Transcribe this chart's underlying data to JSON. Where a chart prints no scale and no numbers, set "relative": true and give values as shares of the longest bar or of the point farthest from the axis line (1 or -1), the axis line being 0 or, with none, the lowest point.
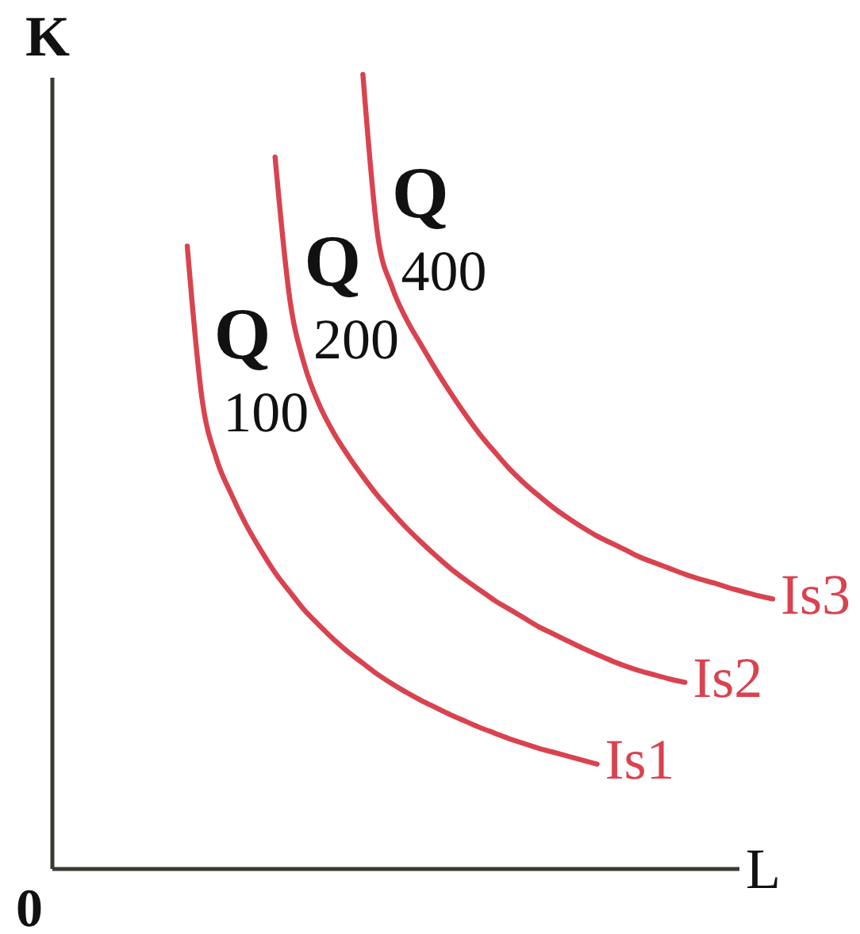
{
  "chart_data": {
    "type": "line",
    "xlabel": "L",
    "ylabel": "K",
    "relative": true,
    "line_style": "solid",
    "categories": [
      null,
      null,
      null,
      null,
      null,
      null,
      null,
      null,
      null,
      null,
      null,
      null,
      null,
      null,
      null,
      null,
      null,
      null,
      null,
      null,
      null,
      null,
      null,
      null,
      null,
      null,
      null,
      null,
      null,
      null,
      null,
      null,
      null,
      null,
      null,
      null,
      null,
      null,
      null,
      null,
      null,
      null,
      null,
      null,
      null,
      null,
      null,
      null,
      null,
      null
    ],
    "series": [
      {
        "name": "Is1",
        "color": "#d8434f",
        "values": [
          null,
          null,
          null,
          null,
          null,
          null,
          null,
          null,
          null,
          0.784,
          0.593,
          0.516,
          0.472,
          0.434,
          0.402,
          0.373,
          0.349,
          0.326,
          0.307,
          0.289,
          0.273,
          0.259,
          0.245,
          0.233,
          0.222,
          0.212,
          0.203,
          0.194,
          0.186,
          0.178,
          0.171,
          0.164,
          0.158,
          0.152,
          0.147,
          0.142,
          0.137,
          0.132,
          null,
          null,
          null,
          null,
          null,
          null,
          null,
          null,
          null,
          null,
          null,
          null
        ]
      },
      {
        "name": "Is2",
        "color": "#d8434f",
        "values": [
          null,
          null,
          null,
          null,
          null,
          null,
          null,
          null,
          null,
          null,
          null,
          null,
          null,
          null,
          null,
          0.896,
          0.718,
          0.635,
          0.585,
          0.549,
          0.52,
          0.494,
          0.47,
          0.449,
          0.429,
          0.411,
          0.394,
          0.378,
          0.364,
          0.351,
          0.338,
          0.327,
          0.316,
          0.305,
          0.296,
          0.287,
          0.278,
          0.27,
          0.262,
          0.255,
          0.249,
          0.244,
          0.239,
          0.235,
          null,
          null,
          null,
          null,
          null,
          null
        ]
      },
      {
        "name": "Is3",
        "color": "#d8434f",
        "values": [
          null,
          null,
          null,
          null,
          null,
          null,
          null,
          null,
          null,
          null,
          null,
          null,
          null,
          null,
          null,
          null,
          null,
          null,
          null,
          null,
          null,
          1.0,
          0.799,
          0.732,
          0.691,
          0.659,
          0.628,
          0.599,
          0.572,
          0.547,
          0.525,
          0.504,
          0.486,
          0.47,
          0.455,
          0.442,
          0.43,
          0.419,
          0.41,
          0.401,
          0.392,
          0.385,
          0.378,
          0.371,
          0.365,
          0.36,
          0.354,
          0.349,
          0.344,
          0.34
        ]
      }
    ],
    "annotations": [
      "Q$_{100}$",
      "Q$_{200}$",
      "Q$_{400}$",
      "0"
    ]
  }
}
